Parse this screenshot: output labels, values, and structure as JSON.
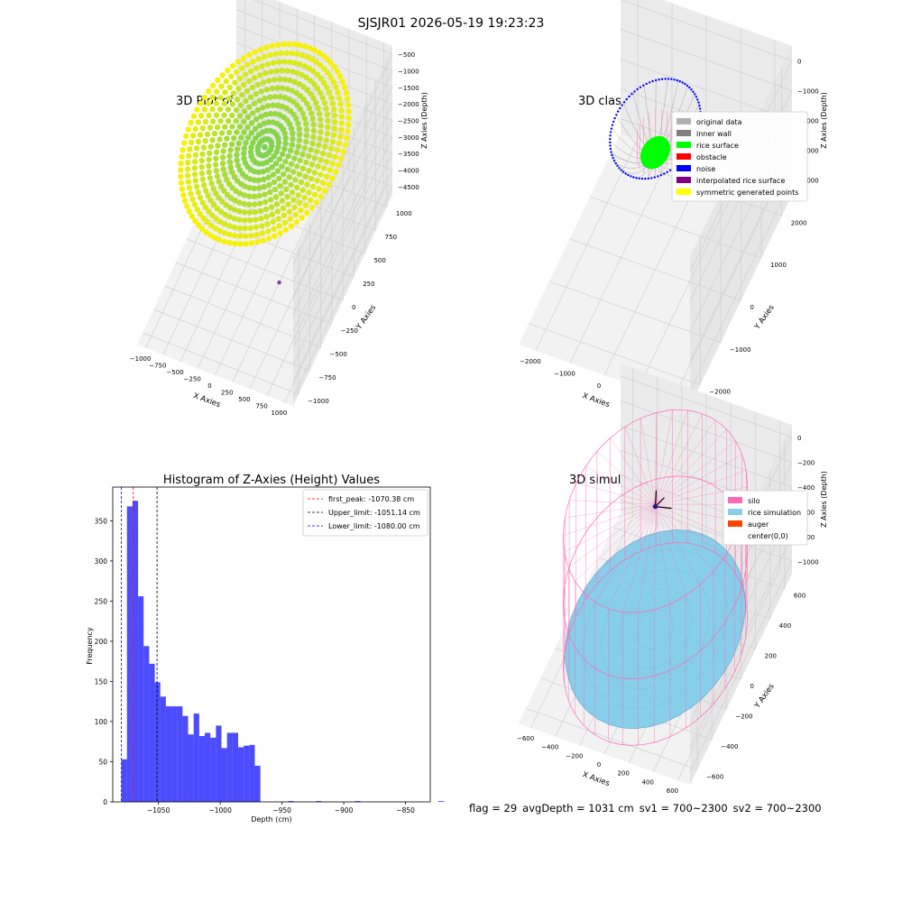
{
  "figure": {
    "suptitle": "SJSJR01 2026-05-19 19:23:23",
    "status": {
      "flag": "flag = 29",
      "avg_depth": "avgDepth = 1031 cm",
      "sv1": "sv1 = 700~2300",
      "sv2": "sv2 = 700~2300"
    }
  },
  "colors": {
    "point_low": "#7fd34e",
    "point_high": "#f5f10a",
    "wall": "#888888",
    "rice": "#00ff00",
    "noise": "#0000ff",
    "interp": "#ff69b4",
    "silo": "#ff69b4",
    "rice_sim": "#87ceeb",
    "auger": "#ff4500",
    "hist": "#0000ff",
    "first_peak_line": "#ff0000",
    "upper_line": "#000000",
    "lower_line": "#0000ff"
  },
  "chart_data": [
    {
      "type": "scatter",
      "projection": "3d",
      "title": "3D Plot of Silo Interior(row data)",
      "xlabel": "X Axies",
      "ylabel": "Y Axies",
      "zlabel": "Z Axies (Depth)",
      "xlim": [
        -1100,
        1100
      ],
      "ylim": [
        -1100,
        1100
      ],
      "zlim": [
        -4800,
        -300
      ],
      "xticks": [
        "−1000",
        "−750",
        "−500",
        "−250",
        "0",
        "250",
        "500",
        "750",
        "1000"
      ],
      "yticks": [
        "−1000",
        "−750",
        "−500",
        "−250",
        "0",
        "250",
        "500",
        "750",
        "1000"
      ],
      "zticks": [
        "−500",
        "−1000",
        "−1500",
        "−2000",
        "−2500",
        "−3000",
        "−3500",
        "−4000",
        "−4500"
      ],
      "surface": {
        "radius": 1000,
        "rim_z": -1000,
        "center_z": -1100
      },
      "outlier": {
        "x": 300,
        "y": -150,
        "z": -4500
      }
    },
    {
      "type": "scatter",
      "projection": "3d",
      "title": "3D classify of Silo Interior",
      "xlabel": "X Axies",
      "ylabel": "Y Axies",
      "zlabel": "Z Axies (Depth)",
      "xlim": [
        -2200,
        2200
      ],
      "ylim": [
        -2200,
        2200
      ],
      "zlim": [
        -4600,
        100
      ],
      "xticks": [
        "−2000",
        "−1000",
        "0",
        "1000",
        "2000"
      ],
      "yticks": [
        "−2000",
        "−1000",
        "0",
        "1000",
        "2000"
      ],
      "zticks": [
        "0",
        "−1000",
        "−2000",
        "−3000",
        "−4000"
      ],
      "legend": {
        "location": "upper right",
        "entries": [
          {
            "label": "original data",
            "color": "#b0b0b0"
          },
          {
            "label": "inner wall",
            "color": "#808080"
          },
          {
            "label": "rice surface",
            "color": "#00ff00"
          },
          {
            "label": "obstacle",
            "color": "#ff0000"
          },
          {
            "label": "noise",
            "color": "#0000ff"
          },
          {
            "label": "interpolated rice surface",
            "color": "#800080"
          },
          {
            "label": "symmetric generated points",
            "color": "#ffff00"
          }
        ]
      },
      "bowl": {
        "radius": 1000,
        "rim_z": -150,
        "bottom_z": -1070
      },
      "inner_cylinder": {
        "radius": 400,
        "top_z": -150,
        "bottom_z": -1000
      }
    },
    {
      "type": "bar",
      "title": "Histogram of Z-Axies (Height) Values",
      "xlabel": "Depth (cm)",
      "ylabel": "Frequency",
      "xlim": [
        -1087,
        -830
      ],
      "ylim": [
        0,
        392
      ],
      "xticks": [
        {
          "value": -1050,
          "label": "−1050"
        },
        {
          "value": -1000,
          "label": "−1000"
        },
        {
          "value": -950,
          "label": "−950"
        },
        {
          "value": -900,
          "label": "−900"
        },
        {
          "value": -850,
          "label": "−850"
        }
      ],
      "yticks": [
        0,
        50,
        100,
        150,
        200,
        250,
        300,
        350
      ],
      "bin_width": 4.5,
      "bins_start": -1080,
      "values": [
        53,
        368,
        375,
        256,
        194,
        172,
        149,
        131,
        119,
        119,
        119,
        107,
        84,
        110,
        82,
        86,
        80,
        95,
        67,
        86,
        86,
        68,
        70,
        71,
        45,
        0,
        0,
        0,
        0,
        0,
        1,
        0,
        0,
        0,
        0,
        1,
        0,
        0,
        0,
        0,
        0,
        0,
        1,
        0,
        0,
        0,
        0,
        0,
        0,
        0,
        0,
        0,
        0,
        0,
        0,
        0,
        0,
        1
      ],
      "vlines": [
        {
          "label": "first_peak: -1070.38 cm",
          "x": -1070.38,
          "color": "#ff0000",
          "style": "dashed"
        },
        {
          "label": "Upper_limit: -1051.14 cm",
          "x": -1051.14,
          "color": "#000000",
          "style": "dashed"
        },
        {
          "label": "Lower_limit: -1080.00 cm",
          "x": -1080.0,
          "color": "#0000ff",
          "style": "dashed"
        }
      ],
      "legend": {
        "location": "upper right"
      }
    },
    {
      "type": "scatter",
      "projection": "3d",
      "title": "3D simulation of Silo Interior",
      "xlabel": "X Axies",
      "ylabel": "Y Axies",
      "zlabel": "Z Axies (Depth)",
      "xlim": [
        -650,
        650
      ],
      "ylim": [
        -650,
        650
      ],
      "zlim": [
        -1200,
        100
      ],
      "xticks": [
        "−600",
        "−400",
        "−200",
        "0",
        "200",
        "400",
        "600"
      ],
      "yticks": [
        "−600",
        "−400",
        "−200",
        "0",
        "200",
        "400",
        "600"
      ],
      "zticks": [
        "0",
        "−200",
        "−400",
        "−600",
        "−800",
        "−1000"
      ],
      "legend": {
        "location": "upper right",
        "entries": [
          {
            "label": "silo",
            "color": "#ff69b4"
          },
          {
            "label": "rice simulation",
            "color": "#87ceeb"
          },
          {
            "label": "auger",
            "color": "#ff4500"
          },
          {
            "label": "center(0,0)",
            "color": "#ffffff"
          }
        ]
      },
      "silo": {
        "radius": 600,
        "top_z": 0,
        "bottom_z": -1160
      },
      "rice_level_z": -1031
    }
  ]
}
